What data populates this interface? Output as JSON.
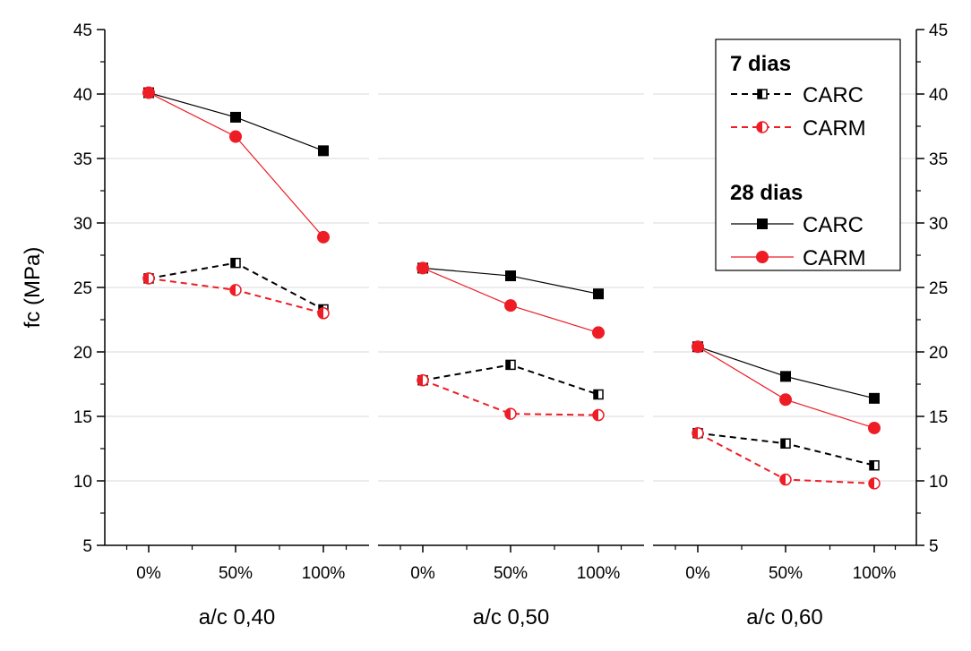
{
  "chart_data": {
    "type": "line",
    "ylabel": "fc (MPa)",
    "ylim": [
      5,
      45
    ],
    "yticks": [
      5,
      10,
      15,
      20,
      25,
      30,
      35,
      40,
      45
    ],
    "grid": true,
    "categories": [
      "0%",
      "50%",
      "100%"
    ],
    "panels": [
      {
        "xlabel": "a/c 0,40",
        "series": [
          {
            "name": "CARC",
            "age": "7 dias",
            "values": [
              25.7,
              26.9,
              23.3
            ]
          },
          {
            "name": "CARM",
            "age": "7 dias",
            "values": [
              25.7,
              24.8,
              23.0
            ]
          },
          {
            "name": "CARC",
            "age": "28 dias",
            "values": [
              40.1,
              38.2,
              35.6
            ]
          },
          {
            "name": "CARM",
            "age": "28 dias",
            "values": [
              40.1,
              36.7,
              28.9
            ]
          }
        ]
      },
      {
        "xlabel": "a/c 0,50",
        "series": [
          {
            "name": "CARC",
            "age": "7 dias",
            "values": [
              17.8,
              19.0,
              16.7
            ]
          },
          {
            "name": "CARM",
            "age": "7 dias",
            "values": [
              17.8,
              15.2,
              15.1
            ]
          },
          {
            "name": "CARC",
            "age": "28 dias",
            "values": [
              26.5,
              25.9,
              24.5
            ]
          },
          {
            "name": "CARM",
            "age": "28 dias",
            "values": [
              26.5,
              23.6,
              21.5
            ]
          }
        ]
      },
      {
        "xlabel": "a/c 0,60",
        "series": [
          {
            "name": "CARC",
            "age": "7 dias",
            "values": [
              13.7,
              12.9,
              11.2
            ]
          },
          {
            "name": "CARM",
            "age": "7 dias",
            "values": [
              13.7,
              10.1,
              9.8
            ]
          },
          {
            "name": "CARC",
            "age": "28 dias",
            "values": [
              20.4,
              18.1,
              16.4
            ]
          },
          {
            "name": "CARM",
            "age": "28 dias",
            "values": [
              20.4,
              16.3,
              14.1
            ]
          }
        ]
      }
    ],
    "legend": {
      "placement": "top-right",
      "groups": [
        {
          "heading": "7 dias",
          "entries": [
            "CARC",
            "CARM"
          ]
        },
        {
          "heading": "28 dias",
          "entries": [
            "CARC",
            "CARM"
          ]
        }
      ]
    },
    "colors": {
      "CARC": "#000000",
      "CARM": "#ee1c25",
      "grid": "#d9d9d9"
    }
  }
}
